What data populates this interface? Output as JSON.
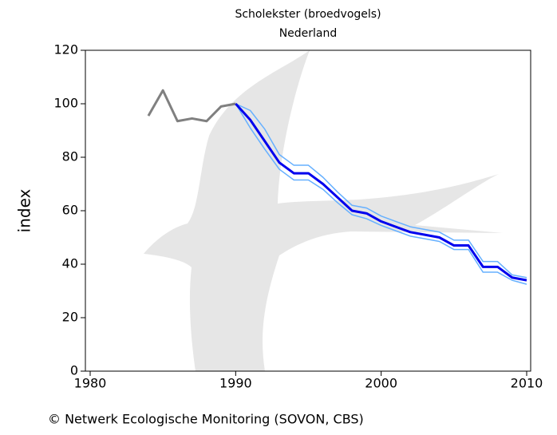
{
  "chart_data": {
    "type": "line",
    "title": "Scholekster (broedvogels)",
    "subtitle": "Nederland",
    "ylabel": "index",
    "source": "© Netwerk Ecologische Monitoring (SOVON, CBS)",
    "x": [
      1984,
      1985,
      1986,
      1987,
      1988,
      1989,
      1990,
      1991,
      1992,
      1993,
      1994,
      1995,
      1996,
      1997,
      1998,
      1999,
      2000,
      2001,
      2002,
      2003,
      2004,
      2005,
      2006,
      2007,
      2008,
      2009,
      2010
    ],
    "series": [
      {
        "color": "#66b0ff",
        "line_width": 1.5,
        "values": [
          null,
          null,
          null,
          null,
          null,
          null,
          100,
          97.5,
          90.5,
          81,
          77,
          77,
          72.5,
          67,
          62,
          61,
          58,
          56,
          54,
          53,
          52,
          49,
          49,
          41,
          41,
          36,
          35
        ]
      },
      {
        "color": "#66b0ff",
        "line_width": 1.5,
        "values": [
          null,
          null,
          null,
          null,
          null,
          null,
          100,
          91,
          83,
          75.5,
          71.5,
          71.5,
          68,
          63,
          58.5,
          57,
          54.5,
          52.5,
          50.5,
          49.5,
          48.5,
          45.5,
          45.5,
          37,
          37,
          34,
          32.5
        ]
      },
      {
        "color": "#808080",
        "line_width": 3,
        "values": [
          95.5,
          105,
          93.5,
          94.5,
          93.5,
          99,
          100,
          null,
          null,
          null,
          null,
          null,
          null,
          null,
          null,
          null,
          null,
          null,
          null,
          null,
          null,
          null,
          null,
          null,
          null,
          null,
          null
        ]
      },
      {
        "color": "#0000ee",
        "line_width": 3,
        "values": [
          null,
          null,
          null,
          null,
          null,
          null,
          100,
          94,
          86,
          78,
          74,
          74,
          70,
          65,
          60,
          59,
          56,
          54,
          52,
          51,
          50,
          47,
          47,
          39,
          39,
          35,
          34
        ]
      }
    ],
    "xlim": [
      1980,
      2010
    ],
    "xticks": [
      1980,
      1990,
      2000,
      2010
    ],
    "ylim": [
      0,
      120
    ],
    "yticks": [
      0,
      20,
      40,
      60,
      80,
      100,
      120
    ],
    "grid": false
  }
}
